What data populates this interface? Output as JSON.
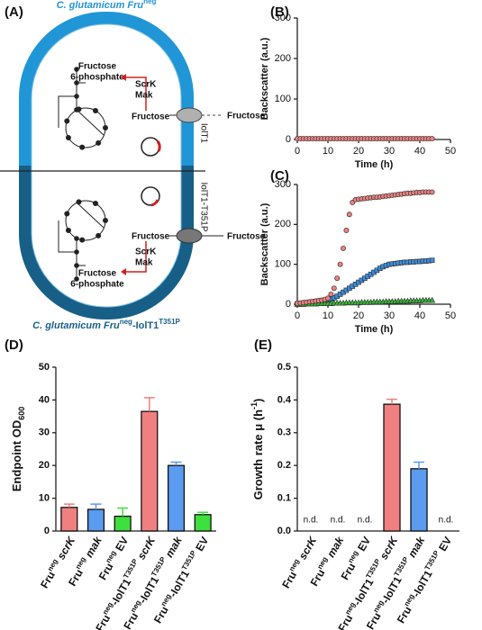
{
  "diagram": {
    "label": "(A)",
    "title": "C. glutamicum Fru",
    "title_sup": "neg",
    "top": {
      "product_line1": "Fructose",
      "product_line2": "6-phosphate",
      "enzyme1": "ScrK",
      "enzyme2": "Mak",
      "inside": "Fructose",
      "outside": "Fructose",
      "transporter": "IolT1"
    },
    "bottom": {
      "product_line1": "Fructose",
      "product_line2": "6-phosphate",
      "enzyme1": "ScrK",
      "enzyme2": "Mak",
      "inside": "Fructose",
      "outside": "Fructose",
      "transporter": "IolT1-T351P"
    },
    "footer": "C. glutamicum Fru",
    "footer_sup": "neg",
    "footer_mid": "-IolT1",
    "footer_sup2": "T351P"
  },
  "chart_data": [
    {
      "type": "line",
      "label": "(B)",
      "xlabel": "Time (h)",
      "ylabel": "Backscatter (a.u.)",
      "xlim": [
        0,
        50
      ],
      "xticks": [
        0,
        10,
        20,
        30,
        40,
        50
      ],
      "ylim": [
        0,
        300
      ],
      "yticks": [
        0,
        100,
        200,
        300
      ],
      "x": [
        0,
        1,
        2,
        3,
        4,
        5,
        6,
        7,
        8,
        9,
        10,
        11,
        12,
        13,
        14,
        15,
        16,
        17,
        18,
        19,
        20,
        21,
        22,
        23,
        24,
        25,
        26,
        27,
        28,
        29,
        30,
        31,
        32,
        33,
        34,
        35,
        36,
        37,
        38,
        39,
        40,
        41,
        42,
        43,
        44
      ],
      "series": [
        {
          "color": "#f08080",
          "marker": "circle",
          "values": [
            2,
            2,
            2,
            2,
            2,
            2,
            2,
            2,
            2,
            2,
            2,
            2,
            2,
            2,
            2,
            2,
            2,
            2,
            2,
            2,
            2,
            2,
            2,
            2,
            2,
            2,
            2,
            2,
            2,
            2,
            2,
            2,
            2,
            2,
            2,
            2,
            2,
            2,
            2,
            2,
            2,
            2,
            2,
            2,
            2
          ]
        }
      ]
    },
    {
      "type": "line",
      "label": "(C)",
      "xlabel": "Time (h)",
      "ylabel": "Backscatter (a.u.)",
      "xlim": [
        0,
        50
      ],
      "xticks": [
        0,
        10,
        20,
        30,
        40,
        50
      ],
      "ylim": [
        0,
        300
      ],
      "yticks": [
        0,
        100,
        200,
        300
      ],
      "x": [
        0,
        1,
        2,
        3,
        4,
        5,
        6,
        7,
        8,
        9,
        10,
        11,
        12,
        13,
        14,
        15,
        16,
        17,
        18,
        19,
        20,
        21,
        22,
        23,
        24,
        25,
        26,
        27,
        28,
        29,
        30,
        31,
        32,
        33,
        34,
        35,
        36,
        37,
        38,
        39,
        40,
        41,
        42,
        43,
        44
      ],
      "series": [
        {
          "color": "#3a8ee0",
          "marker": "square",
          "values": [
            1,
            2,
            3,
            4,
            5,
            6,
            7,
            8,
            9,
            10,
            11,
            13,
            16,
            20,
            25,
            30,
            35,
            40,
            45,
            50,
            55,
            60,
            65,
            70,
            75,
            80,
            85,
            90,
            94,
            97,
            100,
            101,
            102,
            103,
            104,
            105,
            105,
            106,
            106,
            107,
            107,
            108,
            108,
            109,
            110
          ]
        },
        {
          "color": "#30c030",
          "marker": "triangle",
          "values": [
            0,
            0,
            0,
            1,
            1,
            1,
            1,
            2,
            2,
            2,
            2,
            2,
            3,
            3,
            3,
            3,
            4,
            4,
            4,
            4,
            4,
            5,
            5,
            5,
            5,
            6,
            6,
            6,
            6,
            7,
            7,
            7,
            7,
            8,
            8,
            8,
            8,
            9,
            9,
            9,
            9,
            10,
            10,
            10,
            10
          ]
        },
        {
          "color": "#f08080",
          "marker": "circle",
          "values": [
            2,
            3,
            4,
            5,
            6,
            7,
            8,
            9,
            10,
            12,
            15,
            25,
            40,
            65,
            100,
            140,
            185,
            225,
            255,
            262,
            263,
            264,
            265,
            266,
            267,
            268,
            268,
            269,
            270,
            271,
            272,
            273,
            274,
            275,
            276,
            277,
            278,
            278,
            279,
            280,
            280,
            281,
            281,
            281,
            281
          ]
        }
      ]
    },
    {
      "type": "bar",
      "label": "(D)",
      "ylabel": "Endpoint OD",
      "ylabel_sub": "600",
      "ylim": [
        0,
        50
      ],
      "yticks": [
        0,
        10,
        20,
        30,
        40,
        50
      ],
      "categories": [
        "Fruneg scrK",
        "Fruneg mak",
        "Fruneg EV",
        "Fruneg-IolT1T351P scrK",
        "Fruneg-IolT1T351P mak",
        "Fruneg-IolT1T351P EV"
      ],
      "values": [
        7.2,
        6.6,
        4.5,
        36.5,
        20,
        5
      ],
      "errors": [
        1.0,
        1.6,
        2.5,
        4.2,
        1.0,
        0.7
      ],
      "colors": [
        "#f08080",
        "#5b9bf0",
        "#3de03d",
        "#f08080",
        "#5b9bf0",
        "#3de03d"
      ]
    },
    {
      "type": "bar",
      "label": "(E)",
      "ylabel": "Growth rate μ (h",
      "ylabel_sup": "-1",
      "ylabel_end": ")",
      "ylim": [
        0,
        0.5
      ],
      "yticks": [
        {
          "value": 0,
          "label": "0.0"
        },
        0.1,
        0.2,
        0.3,
        0.4,
        0.5
      ],
      "categories": [
        "Fruneg scrK",
        "Fruneg mak",
        "Fruneg EV",
        "Fruneg-IolT1T351P scrK",
        "Fruneg-IolT1T351P mak",
        "Fruneg-IolT1T351P EV"
      ],
      "values": [
        null,
        null,
        null,
        0.387,
        0.19,
        null
      ],
      "value_labels": [
        "n.d.",
        "n.d.",
        "n.d.",
        null,
        null,
        "n.d."
      ],
      "errors": [
        null,
        null,
        null,
        0.015,
        0.02,
        null
      ],
      "colors": [
        "#f08080",
        "#5b9bf0",
        "#3de03d",
        "#f08080",
        "#5b9bf0",
        "#3de03d"
      ]
    }
  ]
}
